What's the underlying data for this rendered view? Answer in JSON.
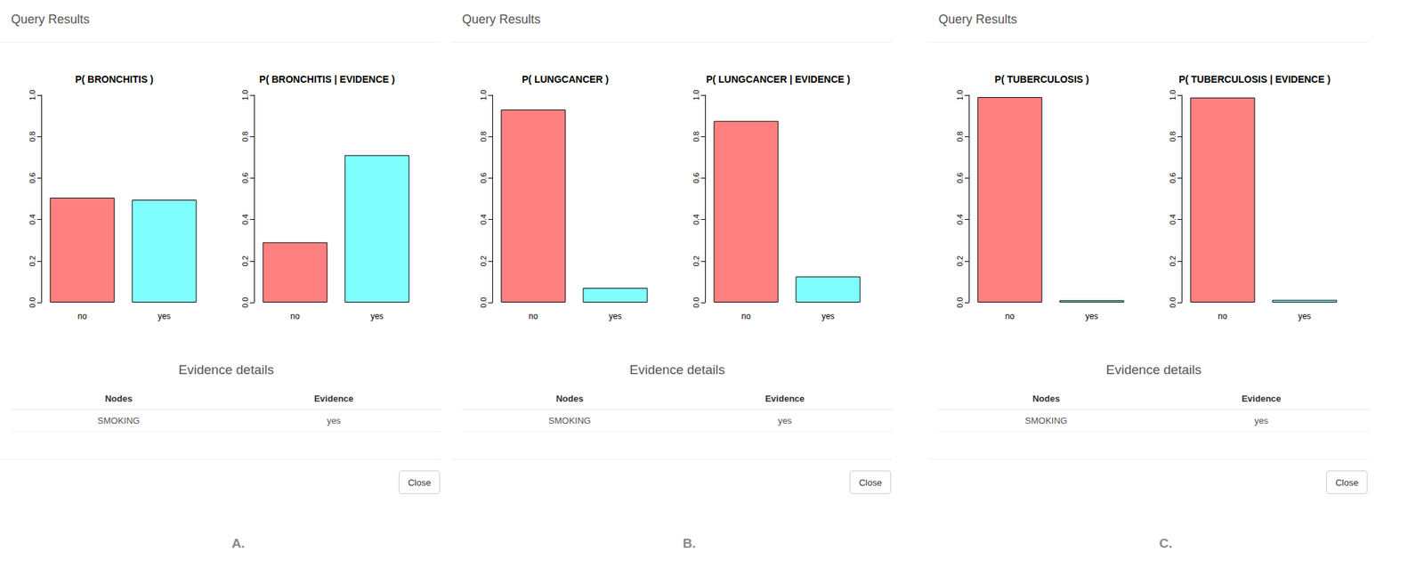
{
  "chart_data": [
    {
      "type": "bar",
      "title": "P( BRONCHITIS )",
      "categories": [
        "no",
        "yes"
      ],
      "values": [
        0.505,
        0.495
      ],
      "colors": [
        "#FF8080",
        "#80FFFF"
      ],
      "ylim": [
        0,
        1
      ],
      "yticks": [
        {
          "value": 0,
          "label": "0.0"
        },
        0.2,
        0.4,
        0.6,
        0.8,
        {
          "value": 1,
          "label": "1.0"
        }
      ],
      "grid": false
    },
    {
      "type": "bar",
      "title": "P( BRONCHITIS | EVIDENCE )",
      "categories": [
        "no",
        "yes"
      ],
      "values": [
        0.29,
        0.71
      ],
      "colors": [
        "#FF8080",
        "#80FFFF"
      ],
      "ylim": [
        0,
        1
      ],
      "yticks": [
        {
          "value": 0,
          "label": "0.0"
        },
        0.2,
        0.4,
        0.6,
        0.8,
        {
          "value": 1,
          "label": "1.0"
        }
      ],
      "grid": false
    },
    {
      "type": "bar",
      "title": "P( LUNGCANCER )",
      "categories": [
        "no",
        "yes"
      ],
      "values": [
        0.93,
        0.07
      ],
      "colors": [
        "#FF8080",
        "#80FFFF"
      ],
      "ylim": [
        0,
        1
      ],
      "yticks": [
        {
          "value": 0,
          "label": "0.0"
        },
        0.2,
        0.4,
        0.6,
        0.8,
        {
          "value": 1,
          "label": "1.0"
        }
      ],
      "grid": false
    },
    {
      "type": "bar",
      "title": "P( LUNGCANCER | EVIDENCE )",
      "categories": [
        "no",
        "yes"
      ],
      "values": [
        0.875,
        0.125
      ],
      "colors": [
        "#FF8080",
        "#80FFFF"
      ],
      "ylim": [
        0,
        1
      ],
      "yticks": [
        {
          "value": 0,
          "label": "0.0"
        },
        0.2,
        0.4,
        0.6,
        0.8,
        {
          "value": 1,
          "label": "1.0"
        }
      ],
      "grid": false
    },
    {
      "type": "bar",
      "title": "P( TUBERCULOSIS )",
      "categories": [
        "no",
        "yes"
      ],
      "values": [
        0.99,
        0.01
      ],
      "colors": [
        "#FF8080",
        "#80FFFF"
      ],
      "ylim": [
        0,
        1
      ],
      "yticks": [
        {
          "value": 0,
          "label": "0.0"
        },
        0.2,
        0.4,
        0.6,
        0.8,
        {
          "value": 1,
          "label": "1.0"
        }
      ],
      "grid": false
    },
    {
      "type": "bar",
      "title": "P( TUBERCULOSIS | EVIDENCE )",
      "categories": [
        "no",
        "yes"
      ],
      "values": [
        0.988,
        0.012
      ],
      "colors": [
        "#FF8080",
        "#80FFFF"
      ],
      "ylim": [
        0,
        1
      ],
      "yticks": [
        {
          "value": 0,
          "label": "0.0"
        },
        0.2,
        0.4,
        0.6,
        0.8,
        {
          "value": 1,
          "label": "1.0"
        }
      ],
      "grid": false
    }
  ],
  "panels": [
    {
      "header": "Query Results",
      "evidence_title": "Evidence details",
      "evidence_columns": [
        "Nodes",
        "Evidence"
      ],
      "evidence_rows": [
        [
          "SMOKING",
          "yes"
        ]
      ],
      "button": "Close",
      "label": "A."
    },
    {
      "header": "Query Results",
      "evidence_title": "Evidence details",
      "evidence_columns": [
        "Nodes",
        "Evidence"
      ],
      "evidence_rows": [
        [
          "SMOKING",
          "yes"
        ]
      ],
      "button": "Close",
      "label": "B."
    },
    {
      "header": "Query Results",
      "evidence_title": "Evidence details",
      "evidence_columns": [
        "Nodes",
        "Evidence"
      ],
      "evidence_rows": [
        [
          "SMOKING",
          "yes"
        ]
      ],
      "button": "Close",
      "label": "C."
    }
  ]
}
